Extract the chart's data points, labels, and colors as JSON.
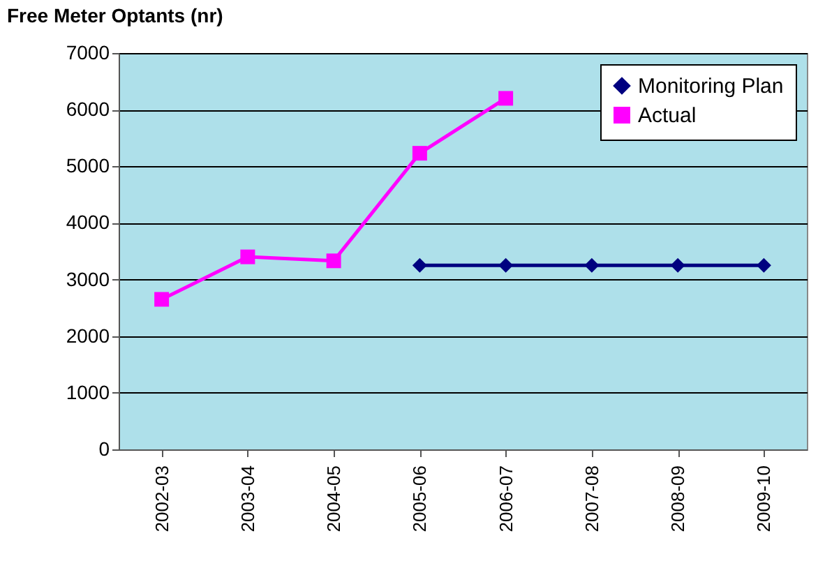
{
  "chart_data": {
    "type": "line",
    "title": "Free Meter Optants (nr)",
    "categories": [
      "2002-03",
      "2003-04",
      "2004-05",
      "2005-06",
      "2006-07",
      "2007-08",
      "2008-09",
      "2009-10"
    ],
    "series": [
      {
        "name": "Monitoring Plan",
        "color": "#000080",
        "marker": "diamond",
        "values": [
          null,
          null,
          null,
          3250,
          3250,
          3250,
          3250,
          3250
        ]
      },
      {
        "name": "Actual",
        "color": "#ff00ff",
        "marker": "square",
        "values": [
          2650,
          3400,
          3330,
          5230,
          6200,
          null,
          null,
          null
        ]
      }
    ],
    "ylim": [
      0,
      7000
    ],
    "yticks": [
      0,
      1000,
      2000,
      3000,
      4000,
      5000,
      6000,
      7000
    ],
    "grid": "y",
    "legend": "top right",
    "line_style": "solid"
  }
}
